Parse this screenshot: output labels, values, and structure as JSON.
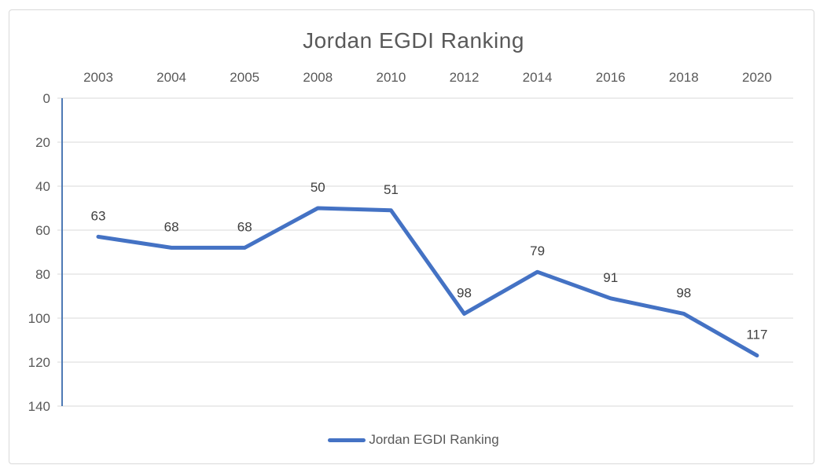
{
  "title": "Jordan EGDI Ranking",
  "legend": {
    "label": "Jordan EGDI Ranking",
    "position": "bottom"
  },
  "colors": {
    "series": "#4472C4",
    "axis_line": "#4E7AB5",
    "gridline": "#D9D9D9",
    "chart_border": "#D9D9D9",
    "title_text": "#595959",
    "axis_text": "#595959",
    "data_label_text": "#404040",
    "background": "#FFFFFF"
  },
  "chart_data": {
    "type": "line",
    "title": "Jordan EGDI Ranking",
    "categories": [
      "2003",
      "2004",
      "2005",
      "2008",
      "2010",
      "2012",
      "2014",
      "2016",
      "2018",
      "2020"
    ],
    "series": [
      {
        "name": "Jordan EGDI Ranking",
        "values": [
          63,
          68,
          68,
          50,
          51,
          98,
          79,
          91,
          98,
          117
        ]
      }
    ],
    "data_labels": [
      "63",
      "68",
      "68",
      "50",
      "51",
      "98",
      "79",
      "91",
      "98",
      "117"
    ],
    "xlabel": "",
    "ylabel": "",
    "x_axis_position": "top",
    "y_axis": {
      "min": 0,
      "max": 140,
      "step": 20,
      "inverted": true,
      "tick_labels": [
        "0",
        "20",
        "40",
        "60",
        "80",
        "100",
        "120",
        "140"
      ]
    },
    "ylim": [
      0,
      140
    ],
    "grid": "horizontal",
    "legend_position": "bottom"
  }
}
